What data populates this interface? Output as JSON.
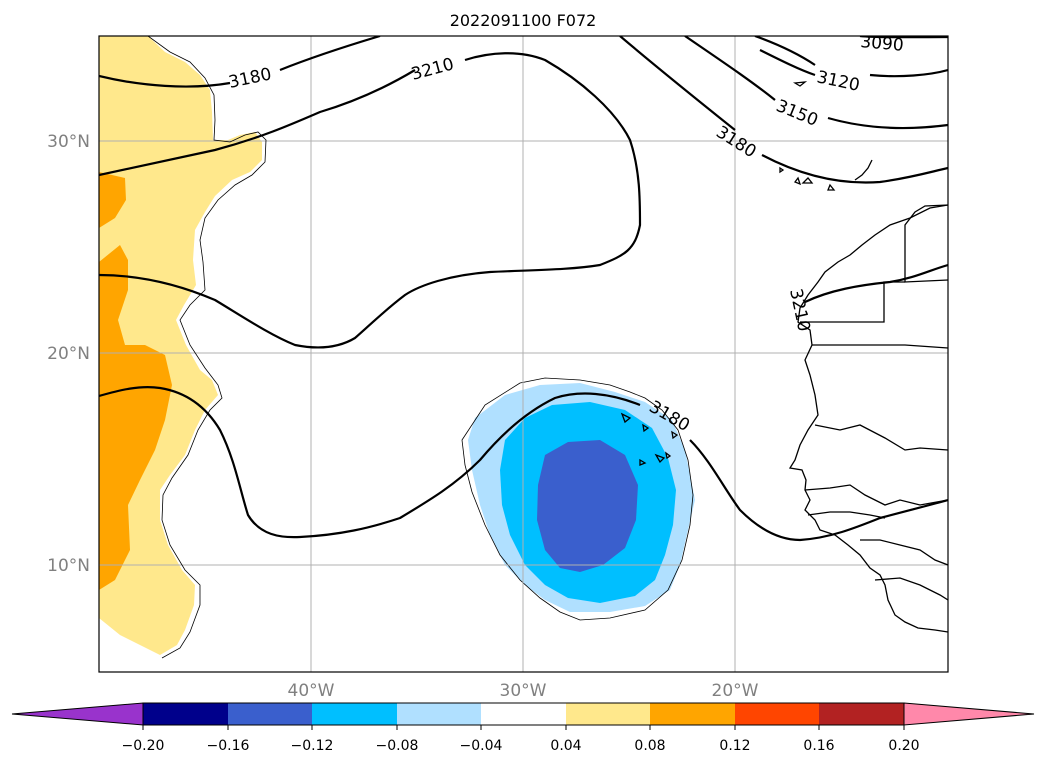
{
  "title": "2022091100 F072",
  "lat_labels": [
    "30°N",
    "20°N",
    "10°N"
  ],
  "lon_labels": [
    "40°W",
    "30°W",
    "20°W"
  ],
  "contour_labels": [
    "3180",
    "3210",
    "3090",
    "3120",
    "3150",
    "3180",
    "3210",
    "3180"
  ],
  "colorbar": {
    "ticks": [
      "−0.20",
      "−0.16",
      "−0.12",
      "−0.08",
      "−0.04",
      "0.04",
      "0.08",
      "0.12",
      "0.16",
      "0.20"
    ],
    "colors": [
      "#9933cc",
      "#00008b",
      "#3a5fcd",
      "#00bfff",
      "#b0e0ff",
      "#ffffff",
      "#ffe88c",
      "#ffa500",
      "#ff4500",
      "#b22222",
      "#ff88aa"
    ]
  },
  "shading_colors": {
    "light_blue": "#b0e0ff",
    "sky_blue": "#00bfff",
    "royal_blue": "#3a5fcd",
    "light_yellow": "#ffe88c",
    "orange": "#ffa500"
  }
}
